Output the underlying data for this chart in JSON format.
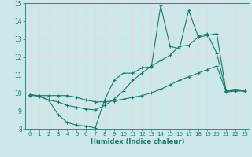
{
  "xlabel": "Humidex (Indice chaleur)",
  "ylabel": "",
  "xlim": [
    -0.5,
    23.5
  ],
  "ylim": [
    8,
    15
  ],
  "yticks": [
    8,
    9,
    10,
    11,
    12,
    13,
    14,
    15
  ],
  "xticks": [
    0,
    1,
    2,
    3,
    4,
    5,
    6,
    7,
    8,
    9,
    10,
    11,
    12,
    13,
    14,
    15,
    16,
    17,
    18,
    19,
    20,
    21,
    22,
    23
  ],
  "bg_color": "#cce8e8",
  "line_color": "#1a7a6e",
  "grid_color": "#d4e8e8",
  "line1_x": [
    0,
    1,
    2,
    3,
    4,
    5,
    6,
    7,
    8,
    9,
    10,
    11,
    12,
    13,
    14,
    15,
    16,
    17,
    18,
    19,
    20,
    21,
    22,
    23
  ],
  "line1_y": [
    9.9,
    9.8,
    9.6,
    8.8,
    8.35,
    8.2,
    8.15,
    8.05,
    9.6,
    10.7,
    11.1,
    11.1,
    11.4,
    11.45,
    14.85,
    12.6,
    12.45,
    14.6,
    13.15,
    13.3,
    12.2,
    10.1,
    10.15,
    10.1
  ],
  "line2_x": [
    0,
    1,
    2,
    3,
    4,
    5,
    6,
    7,
    8,
    9,
    10,
    11,
    12,
    13,
    14,
    15,
    16,
    17,
    18,
    19,
    20,
    21,
    22,
    23
  ],
  "line2_y": [
    9.9,
    9.85,
    9.6,
    9.5,
    9.3,
    9.2,
    9.1,
    9.05,
    9.3,
    9.65,
    10.1,
    10.7,
    11.1,
    11.5,
    11.8,
    12.1,
    12.6,
    12.65,
    13.1,
    13.2,
    13.3,
    10.1,
    10.15,
    10.1
  ],
  "line3_x": [
    0,
    1,
    2,
    3,
    4,
    5,
    6,
    7,
    8,
    9,
    10,
    11,
    12,
    13,
    14,
    15,
    16,
    17,
    18,
    19,
    20,
    21,
    22,
    23
  ],
  "line3_y": [
    9.85,
    9.85,
    9.85,
    9.85,
    9.85,
    9.75,
    9.6,
    9.5,
    9.5,
    9.55,
    9.65,
    9.75,
    9.85,
    10.0,
    10.2,
    10.45,
    10.7,
    10.9,
    11.1,
    11.3,
    11.5,
    10.05,
    10.1,
    10.1
  ]
}
